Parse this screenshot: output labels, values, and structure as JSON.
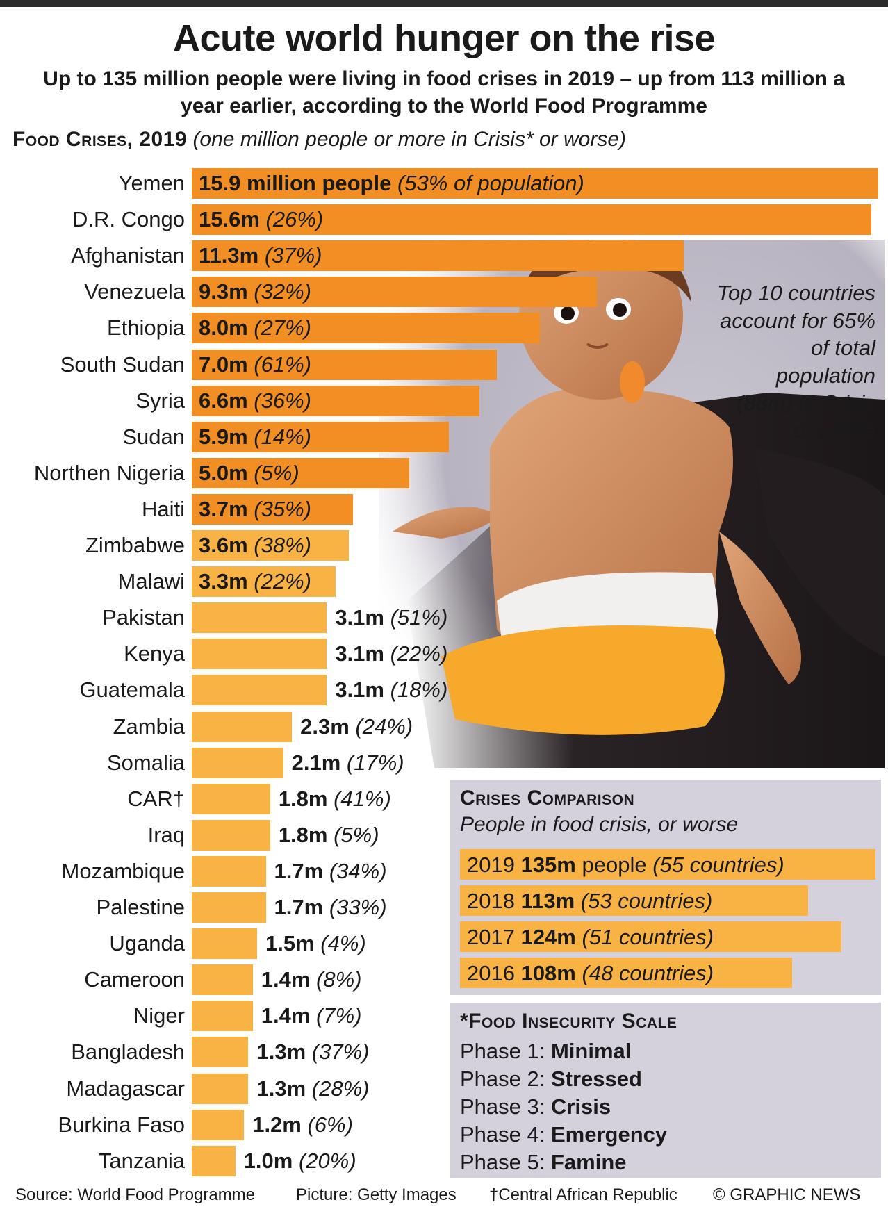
{
  "header": {
    "title": "Acute world hunger on the rise",
    "subtitle": "Up to 135 million people were living in food crises in 2019 – up from 113 million a year earlier, according to the World Food Programme"
  },
  "section": {
    "label": "Food Crises, 2019",
    "note": "(one million people or more in Crisis* or worse)"
  },
  "callout": "Top 10 countries account for 65% of total population (88m) in Crisis or worse",
  "chart_data": {
    "type": "bar",
    "orientation": "horizontal",
    "title": "Food Crises, 2019",
    "unit": "million people",
    "categories": [
      "Yemen",
      "D.R. Congo",
      "Afghanistan",
      "Venezuela",
      "Ethiopia",
      "South Sudan",
      "Syria",
      "Sudan",
      "Northen Nigeria",
      "Haiti",
      "Zimbabwe",
      "Malawi",
      "Pakistan",
      "Kenya",
      "Guatemala",
      "Zambia",
      "Somalia",
      "CAR†",
      "Iraq",
      "Mozambique",
      "Palestine",
      "Uganda",
      "Cameroon",
      "Niger",
      "Bangladesh",
      "Madagascar",
      "Burkina Faso",
      "Tanzania"
    ],
    "values": [
      15.9,
      15.6,
      11.3,
      9.3,
      8.0,
      7.0,
      6.6,
      5.9,
      5.0,
      3.7,
      3.6,
      3.3,
      3.1,
      3.1,
      3.1,
      2.3,
      2.1,
      1.8,
      1.8,
      1.7,
      1.7,
      1.5,
      1.4,
      1.4,
      1.3,
      1.3,
      1.2,
      1.0
    ],
    "value_labels": [
      "15.9 million people",
      "15.6m",
      "11.3m",
      "9.3m",
      "8.0m",
      "7.0m",
      "6.6m",
      "5.9m",
      "5.0m",
      "3.7m",
      "3.6m",
      "3.3m",
      "3.1m",
      "3.1m",
      "3.1m",
      "2.3m",
      "2.1m",
      "1.8m",
      "1.8m",
      "1.7m",
      "1.7m",
      "1.5m",
      "1.4m",
      "1.4m",
      "1.3m",
      "1.3m",
      "1.2m",
      "1.0m"
    ],
    "pct_labels": [
      "(53% of population)",
      "(26%)",
      "(37%)",
      "(32%)",
      "(27%)",
      "(61%)",
      "(36%)",
      "(14%)",
      "(5%)",
      "(35%)",
      "(38%)",
      "(22%)",
      "(51%)",
      "(22%)",
      "(18%)",
      "(24%)",
      "(17%)",
      "(41%)",
      "(5%)",
      "(34%)",
      "(33%)",
      "(4%)",
      "(8%)",
      "(7%)",
      "(37%)",
      "(28%)",
      "(6%)",
      "(20%)"
    ],
    "percent_of_population": [
      53,
      26,
      37,
      32,
      27,
      61,
      36,
      14,
      5,
      35,
      38,
      22,
      51,
      22,
      18,
      24,
      17,
      41,
      5,
      34,
      33,
      4,
      8,
      7,
      37,
      28,
      6,
      20
    ],
    "top10_color": "#f28f24",
    "rest_color": "#f9b344"
  },
  "comparison": {
    "title": "Crises Comparison",
    "subtitle": "People in food crisis, or worse",
    "rows": [
      {
        "year": "2019",
        "value": 135,
        "value_label": "135m",
        "extra": " people",
        "countries": "(55 countries)"
      },
      {
        "year": "2018",
        "value": 113,
        "value_label": "113m",
        "extra": "",
        "countries": "(53 countries)"
      },
      {
        "year": "2017",
        "value": 124,
        "value_label": "124m",
        "extra": "",
        "countries": "(51 countries)"
      },
      {
        "year": "2016",
        "value": 108,
        "value_label": "108m",
        "extra": "",
        "countries": "(48 countries)"
      }
    ]
  },
  "scale": {
    "title": "*Food Insecurity Scale",
    "phases": [
      {
        "label": "Phase 1: ",
        "name": "Minimal"
      },
      {
        "label": "Phase 2: ",
        "name": "Stressed"
      },
      {
        "label": "Phase 3: ",
        "name": "Crisis"
      },
      {
        "label": "Phase 4: ",
        "name": "Emergency"
      },
      {
        "label": "Phase 5: ",
        "name": "Famine"
      }
    ]
  },
  "footer": {
    "source": "Source: World Food Programme",
    "picture": "Picture: Getty Images",
    "note": "†Central African Republic",
    "credit": "© GRAPHIC NEWS"
  }
}
